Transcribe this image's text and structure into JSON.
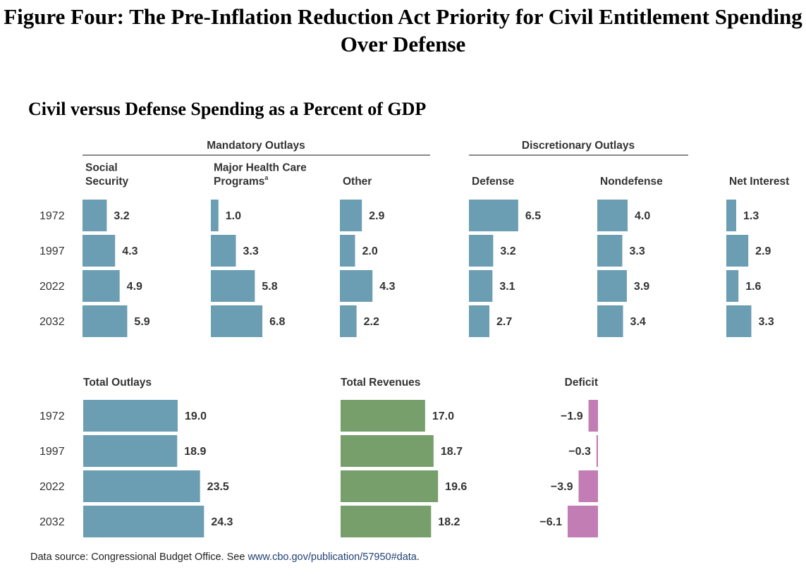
{
  "figure_title": "Figure Four: The Pre-Inflation Reduction Act Priority for Civil Entitlement Spending Over Defense",
  "chart_title": "Civil versus Defense Spending as a Percent of GDP",
  "source": {
    "prefix": "Data source: Congressional Budget Office. See ",
    "link": "www.cbo.gov/publication/57950#data",
    "suffix": "."
  },
  "colors": {
    "blue": "#6b9db3",
    "green": "#769f6b",
    "pink": "#c27db4",
    "rule": "#444444"
  },
  "chart_data": {
    "type": "bar",
    "years": [
      "1972",
      "1997",
      "2022",
      "2032"
    ],
    "groups": [
      {
        "name": "Mandatory Outlays",
        "panels": [
          "Social Security",
          "Major Health Care Programs",
          "Other"
        ]
      },
      {
        "name": "Discretionary Outlays",
        "panels": [
          "Defense",
          "Nondefense"
        ]
      }
    ],
    "panels": [
      {
        "id": "social-security",
        "label_lines": [
          "Social",
          "Security"
        ],
        "color": "blue",
        "values": [
          3.2,
          4.3,
          4.9,
          5.9
        ],
        "labels": [
          "3.2",
          "4.3",
          "4.9",
          "5.9"
        ]
      },
      {
        "id": "health-care",
        "label_lines": [
          "Major Health Care",
          "Programs"
        ],
        "superscript": "a",
        "color": "blue",
        "values": [
          1.0,
          3.3,
          5.8,
          6.8
        ],
        "labels": [
          "1.0",
          "3.3",
          "5.8",
          "6.8"
        ]
      },
      {
        "id": "other",
        "label_lines": [
          "Other"
        ],
        "color": "blue",
        "values": [
          2.9,
          2.0,
          4.3,
          2.2
        ],
        "labels": [
          "2.9",
          "2.0",
          "4.3",
          "2.2"
        ]
      },
      {
        "id": "defense",
        "label_lines": [
          "Defense"
        ],
        "color": "blue",
        "values": [
          6.5,
          3.2,
          3.1,
          2.7
        ],
        "labels": [
          "6.5",
          "3.2",
          "3.1",
          "2.7"
        ]
      },
      {
        "id": "nondefense",
        "label_lines": [
          "Nondefense"
        ],
        "color": "blue",
        "values": [
          4.0,
          3.3,
          3.9,
          3.4
        ],
        "labels": [
          "4.0",
          "3.3",
          "3.9",
          "3.4"
        ]
      },
      {
        "id": "net-interest",
        "label_lines": [
          "Net Interest"
        ],
        "color": "blue",
        "values": [
          1.3,
          2.9,
          1.6,
          3.3
        ],
        "labels": [
          "1.3",
          "2.9",
          "1.6",
          "3.3"
        ]
      }
    ],
    "totals": [
      {
        "id": "total-outlays",
        "label": "Total Outlays",
        "color": "blue",
        "values": [
          19.0,
          18.9,
          23.5,
          24.3
        ],
        "labels": [
          "19.0",
          "18.9",
          "23.5",
          "24.3"
        ]
      },
      {
        "id": "total-revenues",
        "label": "Total Revenues",
        "color": "green",
        "values": [
          17.0,
          18.7,
          19.6,
          18.2
        ],
        "labels": [
          "17.0",
          "18.7",
          "19.6",
          "18.2"
        ]
      },
      {
        "id": "deficit",
        "label": "Deficit",
        "color": "pink",
        "values": [
          -1.9,
          -0.3,
          -3.9,
          -6.1
        ],
        "labels": [
          "−1.9",
          "−0.3",
          "−3.9",
          "−6.1"
        ]
      }
    ]
  }
}
